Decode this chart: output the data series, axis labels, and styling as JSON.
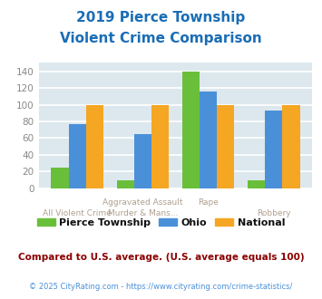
{
  "title_line1": "2019 Pierce Township",
  "title_line2": "Violent Crime Comparison",
  "top_labels": [
    "",
    "Aggravated Assault",
    "Rape",
    ""
  ],
  "bottom_labels": [
    "All Violent Crime",
    "Murder & Mans...",
    "",
    "Robbery"
  ],
  "pierce": [
    25,
    10,
    139,
    10
  ],
  "ohio": [
    77,
    65,
    116,
    93
  ],
  "national": [
    100,
    100,
    100,
    100
  ],
  "colors": {
    "pierce": "#6abf3a",
    "ohio": "#4a90d9",
    "national": "#f5a623"
  },
  "ylim": [
    0,
    150
  ],
  "yticks": [
    0,
    20,
    40,
    60,
    80,
    100,
    120,
    140
  ],
  "title_color": "#1a6db5",
  "label_color": "#b0a090",
  "yticklabel_color": "#888888",
  "subtitle_note": "Compared to U.S. average. (U.S. average equals 100)",
  "footnote": "© 2025 CityRating.com - https://www.cityrating.com/crime-statistics/",
  "bg_color": "#dce8ee",
  "grid_color": "#ffffff",
  "note_color": "#8b0000",
  "footnote_color": "#4a90d9",
  "legend_labels": [
    "Pierce Township",
    "Ohio",
    "National"
  ]
}
